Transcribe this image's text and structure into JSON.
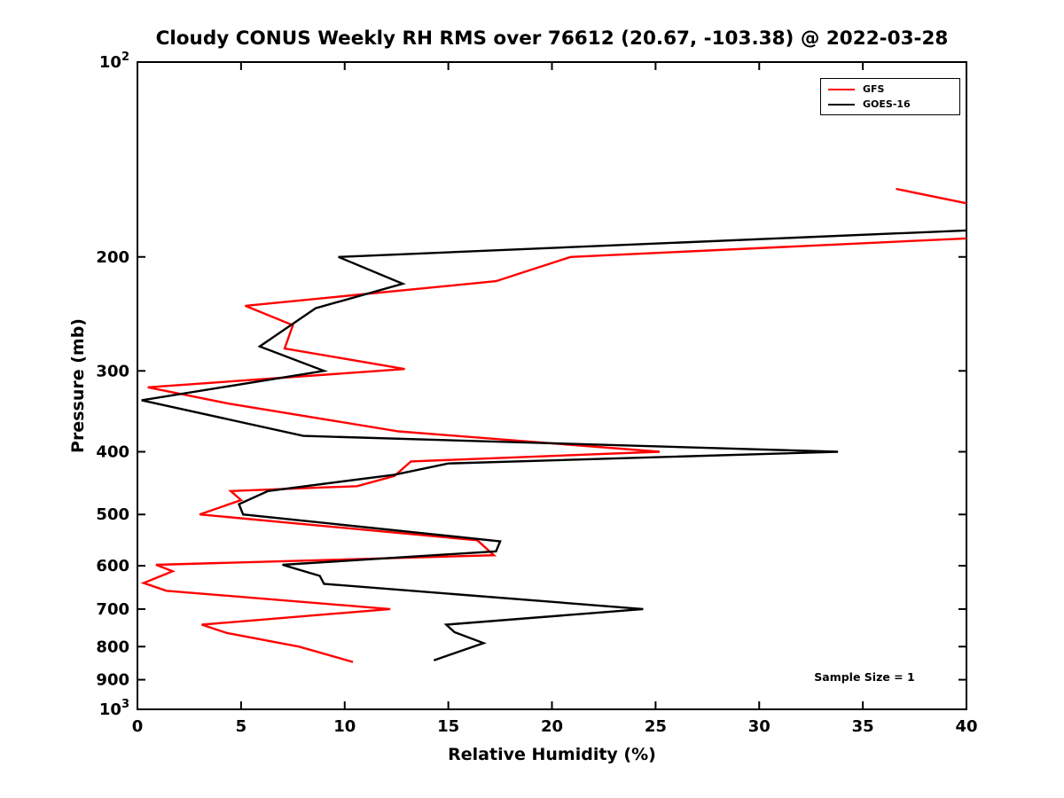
{
  "chart_data": {
    "type": "line",
    "title": "Cloudy CONUS Weekly RH RMS over 76612 (20.67, -103.38) @ 2022-03-28",
    "xlabel": "Relative Humidity (%)",
    "ylabel": "Pressure (mb)",
    "xlim": [
      0,
      40
    ],
    "ylim": [
      100,
      1000
    ],
    "y_scale": "log",
    "grid": false,
    "x_ticks": [
      0,
      5,
      10,
      15,
      20,
      25,
      30,
      35,
      40
    ],
    "y_ticks": [
      {
        "p": 100,
        "label": "10^2"
      },
      {
        "p": 200,
        "label": "200"
      },
      {
        "p": 300,
        "label": "300"
      },
      {
        "p": 400,
        "label": "400"
      },
      {
        "p": 500,
        "label": "500"
      },
      {
        "p": 600,
        "label": "600"
      },
      {
        "p": 700,
        "label": "700"
      },
      {
        "p": 800,
        "label": "800"
      },
      {
        "p": 900,
        "label": "900"
      },
      {
        "p": 1000,
        "label": "10^3"
      }
    ],
    "legend": {
      "position": "top-right",
      "entries": [
        {
          "name": "GFS",
          "color": "#ff0000"
        },
        {
          "name": "GOES-16",
          "color": "#000000"
        }
      ]
    },
    "annotation": "Sample Size = 1",
    "series": [
      {
        "name": "GFS",
        "color": "#ff0000",
        "points_format": "[pressure_mb, rh_percent]",
        "points": [
          [
            157,
            36.6
          ],
          [
            166,
            40.3
          ],
          [
            178,
            43.5
          ],
          [
            186,
            42.0
          ],
          [
            200,
            20.9
          ],
          [
            218,
            17.3
          ],
          [
            238,
            5.2
          ],
          [
            255,
            7.5
          ],
          [
            277,
            7.1
          ],
          [
            298,
            12.9
          ],
          [
            318,
            0.5
          ],
          [
            337,
            4.4
          ],
          [
            372,
            12.6
          ],
          [
            400,
            25.2
          ],
          [
            414,
            13.2
          ],
          [
            436,
            12.4
          ],
          [
            452,
            10.6
          ],
          [
            460,
            4.5
          ],
          [
            475,
            5.0
          ],
          [
            500,
            3.0
          ],
          [
            548,
            16.4
          ],
          [
            578,
            17.2
          ],
          [
            598,
            0.9
          ],
          [
            612,
            1.7
          ],
          [
            638,
            0.3
          ],
          [
            656,
            1.4
          ],
          [
            700,
            12.2
          ],
          [
            740,
            3.1
          ],
          [
            762,
            4.3
          ],
          [
            800,
            7.8
          ],
          [
            845,
            10.4
          ]
        ]
      },
      {
        "name": "GOES-16",
        "color": "#000000",
        "points_format": "[pressure_mb, rh_percent]",
        "points": [
          [
            182,
            40.0
          ],
          [
            200,
            9.7
          ],
          [
            220,
            12.8
          ],
          [
            240,
            8.6
          ],
          [
            275,
            5.9
          ],
          [
            300,
            9.0
          ],
          [
            333,
            0.2
          ],
          [
            378,
            8.0
          ],
          [
            400,
            33.8
          ],
          [
            417,
            15.0
          ],
          [
            434,
            12.4
          ],
          [
            460,
            6.3
          ],
          [
            482,
            4.9
          ],
          [
            500,
            5.1
          ],
          [
            550,
            17.5
          ],
          [
            570,
            17.3
          ],
          [
            598,
            7.0
          ],
          [
            622,
            8.8
          ],
          [
            640,
            9.0
          ],
          [
            700,
            24.4
          ],
          [
            740,
            14.9
          ],
          [
            760,
            15.3
          ],
          [
            790,
            16.7
          ],
          [
            840,
            14.3
          ]
        ]
      }
    ]
  }
}
